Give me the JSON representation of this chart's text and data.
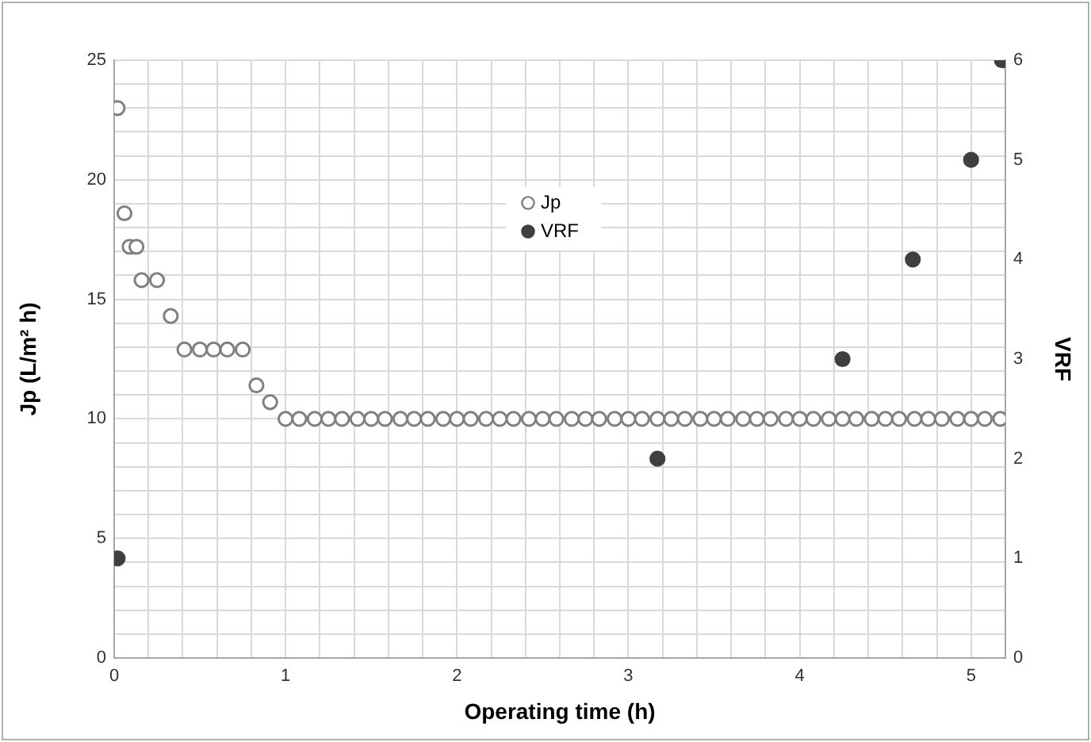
{
  "chart_data": {
    "type": "scatter",
    "xlabel": "Operating time (h)",
    "ylabel": "Jp (L/m² h)",
    "y2label": "VRF",
    "xlim": [
      0,
      5.2
    ],
    "xticks": [
      0,
      {
        "value": 0.2,
        "label": null
      },
      {
        "value": 0.4,
        "label": null
      },
      {
        "value": 0.6,
        "label": null
      },
      {
        "value": 0.8,
        "label": null
      },
      1,
      {
        "value": 1.2,
        "label": null
      },
      {
        "value": 1.4,
        "label": null
      },
      {
        "value": 1.6,
        "label": null
      },
      {
        "value": 1.8,
        "label": null
      },
      2,
      {
        "value": 2.2,
        "label": null
      },
      {
        "value": 2.4,
        "label": null
      },
      {
        "value": 2.6,
        "label": null
      },
      {
        "value": 2.8,
        "label": null
      },
      3,
      {
        "value": 3.2,
        "label": null
      },
      {
        "value": 3.4,
        "label": null
      },
      {
        "value": 3.6,
        "label": null
      },
      {
        "value": 3.8,
        "label": null
      },
      4,
      {
        "value": 4.2,
        "label": null
      },
      {
        "value": 4.4,
        "label": null
      },
      {
        "value": 4.6,
        "label": null
      },
      {
        "value": 4.8,
        "label": null
      },
      5,
      {
        "value": 5.2,
        "label": null
      }
    ],
    "ylim": [
      0,
      25
    ],
    "yticks": [
      0,
      {
        "value": 1,
        "label": null
      },
      {
        "value": 2,
        "label": null
      },
      {
        "value": 3,
        "label": null
      },
      {
        "value": 4,
        "label": null
      },
      5,
      {
        "value": 6,
        "label": null
      },
      {
        "value": 7,
        "label": null
      },
      {
        "value": 8,
        "label": null
      },
      {
        "value": 9,
        "label": null
      },
      10,
      {
        "value": 11,
        "label": null
      },
      {
        "value": 12,
        "label": null
      },
      {
        "value": 13,
        "label": null
      },
      {
        "value": 14,
        "label": null
      },
      15,
      {
        "value": 16,
        "label": null
      },
      {
        "value": 17,
        "label": null
      },
      {
        "value": 18,
        "label": null
      },
      {
        "value": 19,
        "label": null
      },
      20,
      {
        "value": 21,
        "label": null
      },
      {
        "value": 22,
        "label": null
      },
      {
        "value": 23,
        "label": null
      },
      {
        "value": 24,
        "label": null
      },
      25
    ],
    "y2lim": [
      0,
      6
    ],
    "y2ticks": [
      0,
      1,
      2,
      3,
      4,
      5,
      6
    ],
    "grid": true,
    "legend": "top",
    "marker": "circle",
    "series": [
      {
        "name": "Jp",
        "color": "#808080",
        "x": [
          0.02,
          0.06,
          0.09,
          0.13,
          0.16,
          0.25,
          0.33,
          0.41,
          0.5,
          0.58,
          0.66,
          0.75,
          0.83,
          0.91,
          1.0,
          1.08,
          1.17,
          1.25,
          1.33,
          1.42,
          1.5,
          1.58,
          1.67,
          1.75,
          1.83,
          1.92,
          2.0,
          2.08,
          2.17,
          2.25,
          2.33,
          2.42,
          2.5,
          2.58,
          2.67,
          2.75,
          2.83,
          2.92,
          3.0,
          3.08,
          3.17,
          3.25,
          3.33,
          3.42,
          3.5,
          3.58,
          3.67,
          3.75,
          3.83,
          3.92,
          4.0,
          4.08,
          4.17,
          4.25,
          4.33,
          4.42,
          4.5,
          4.58,
          4.67,
          4.75,
          4.83,
          4.92,
          5.0,
          5.08,
          5.17
        ],
        "values": [
          23.0,
          18.6,
          17.2,
          17.2,
          15.8,
          15.8,
          14.3,
          12.9,
          12.9,
          12.9,
          12.9,
          12.9,
          11.4,
          10.7,
          10,
          10,
          10,
          10,
          10,
          10,
          10,
          10,
          10,
          10,
          10,
          10,
          10,
          10,
          10,
          10,
          10,
          10,
          10,
          10,
          10,
          10,
          10,
          10,
          10,
          10,
          10,
          10,
          10,
          10,
          10,
          10,
          10,
          10,
          10,
          10,
          10,
          10,
          10,
          10,
          10,
          10,
          10,
          10,
          10,
          10,
          10,
          10,
          10,
          10,
          10
        ]
      },
      {
        "name": "VRF",
        "color": "#3f3f3f",
        "axis": "y2",
        "x": [
          0.02,
          3.17,
          4.25,
          4.66,
          5.0,
          5.18
        ],
        "values": [
          1,
          2,
          3,
          4,
          5,
          6
        ]
      }
    ]
  }
}
